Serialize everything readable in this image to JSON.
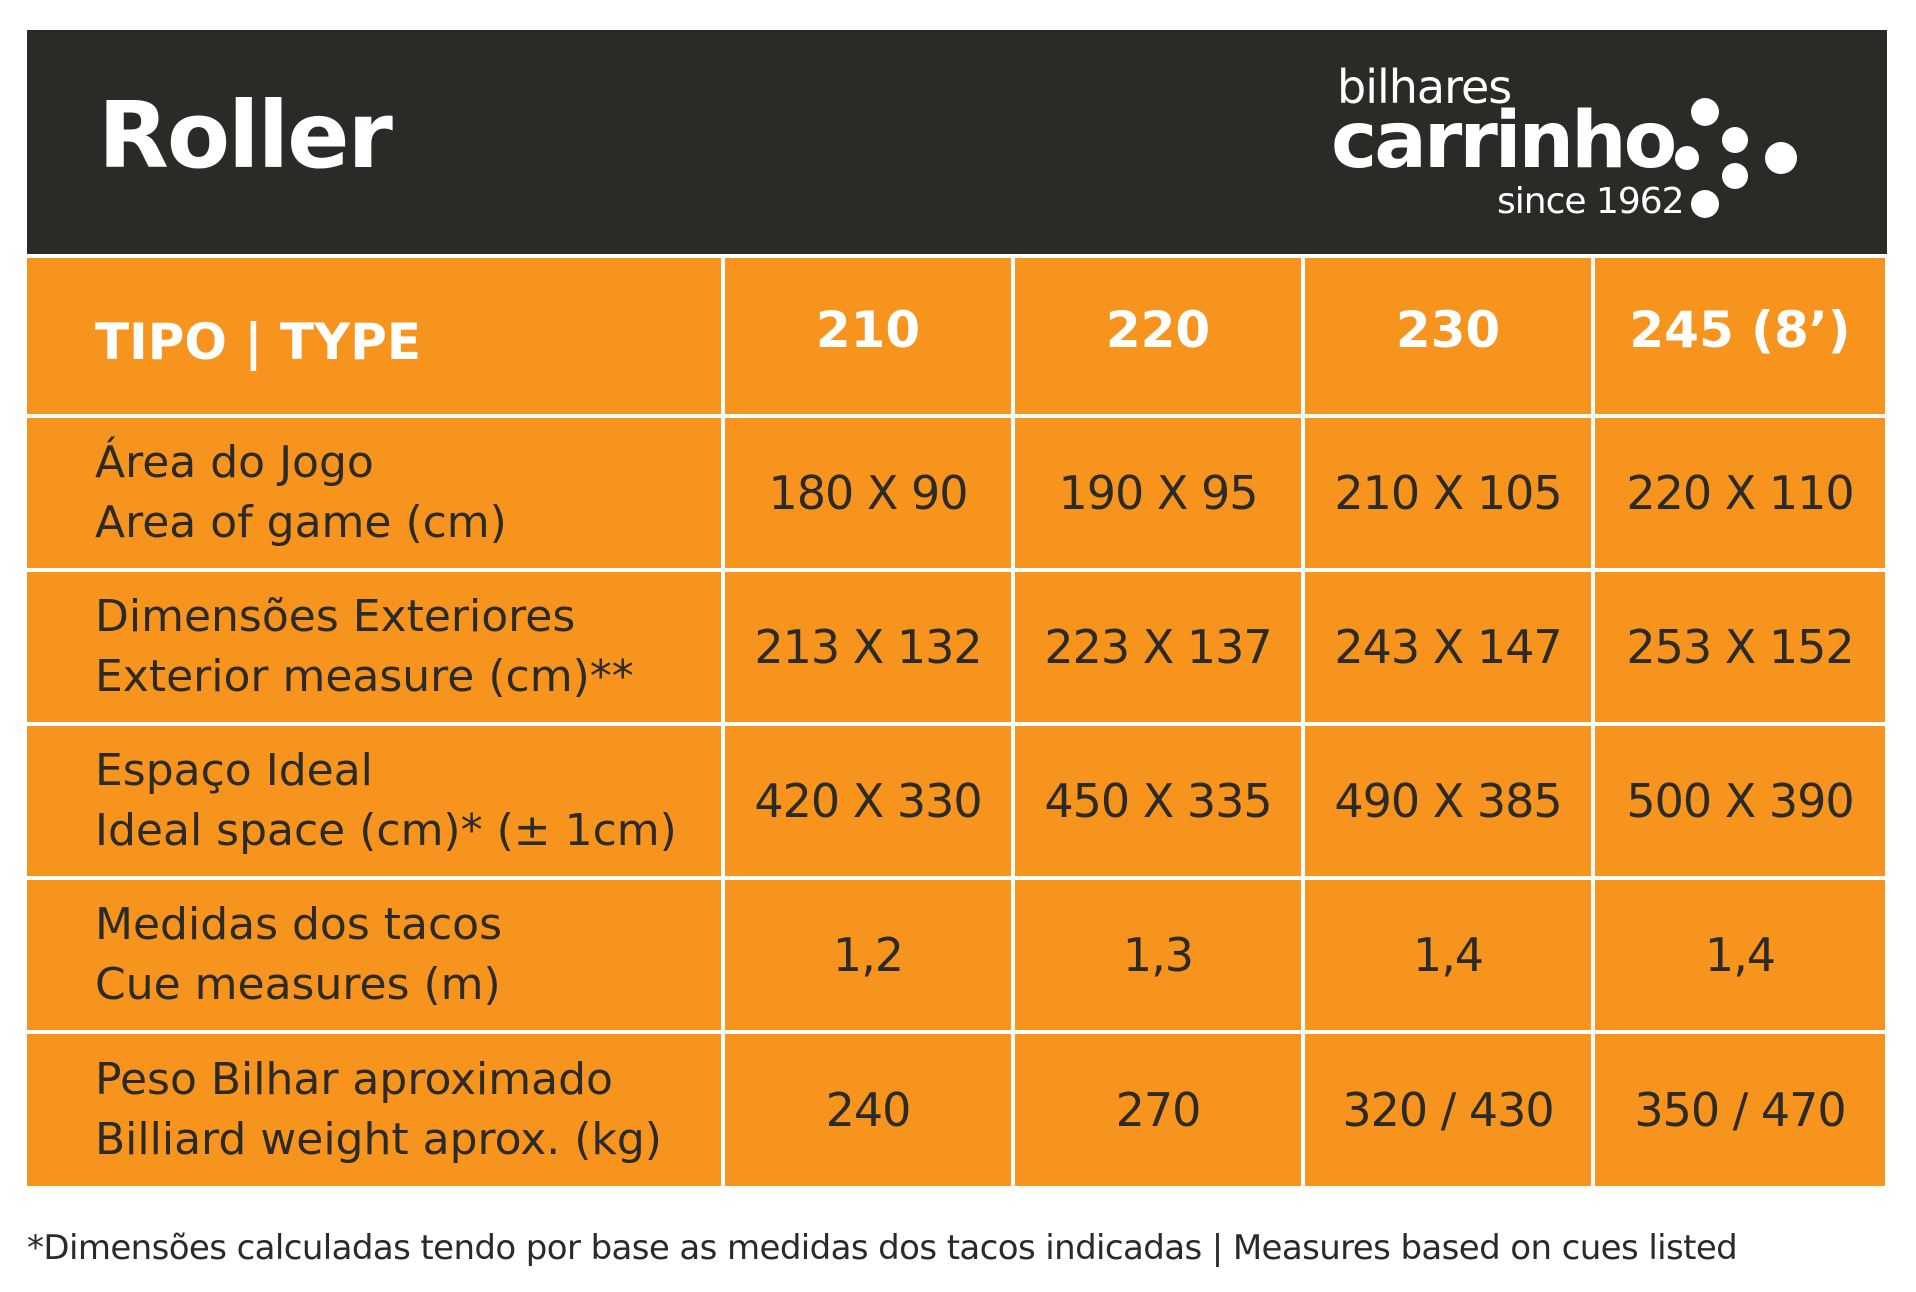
{
  "header": {
    "title": "Roller",
    "logo": {
      "top": "bilhares",
      "brand": "carrinho",
      "tagline": "since 1962"
    }
  },
  "colors": {
    "header_bg": "#2b2a26",
    "cell_bg": "#f7941d",
    "text_dark": "#2b2a26",
    "text_light": "#ffffff"
  },
  "table": {
    "type_header": "TIPO | TYPE",
    "columns": [
      "210",
      "220",
      "230",
      "245 (8’)"
    ],
    "rows": [
      {
        "label_pt": "Área do Jogo",
        "label_en": "Area of game (cm)",
        "values": [
          "180 X 90",
          "190 X 95",
          "210 X 105",
          "220 X 110"
        ]
      },
      {
        "label_pt": "Dimensões Exteriores",
        "label_en": "Exterior measure (cm)**",
        "values": [
          "213 X 132",
          "223 X 137",
          "243 X 147",
          "253 X 152"
        ]
      },
      {
        "label_pt": "Espaço Ideal",
        "label_en": "Ideal space (cm)* (± 1cm)",
        "values": [
          "420 X 330",
          "450 X 335",
          "490 X 385",
          "500 X 390"
        ]
      },
      {
        "label_pt": "Medidas dos tacos",
        "label_en": "Cue measures (m)",
        "values": [
          "1,2",
          "1,3",
          "1,4",
          "1,4"
        ]
      },
      {
        "label_pt": "Peso Bilhar aproximado",
        "label_en": "Billiard weight aprox. (kg)",
        "values": [
          "240",
          "270",
          "320 / 430",
          "350 / 470"
        ]
      }
    ]
  },
  "footnote": "*Dimensões calculadas tendo por base as medidas dos tacos indicadas | Measures based on cues listed"
}
